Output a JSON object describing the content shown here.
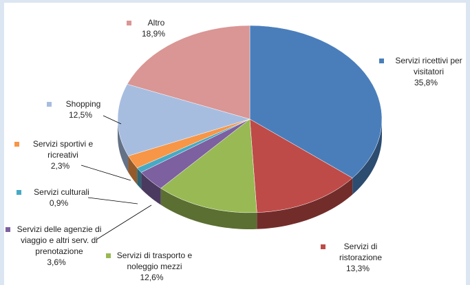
{
  "chart_data": {
    "type": "pie",
    "categories": [
      "Servizi ricettivi per visitatori",
      "Servizi di ristorazione",
      "Servizi di trasporto e noleggio mezzi",
      "Servizi delle agenzie di viaggio e altri serv. di prenotazione",
      "Servizi culturali",
      "Servizi sportivi e ricreativi",
      "Shopping",
      "Altro"
    ],
    "values": [
      35.8,
      13.3,
      12.6,
      3.6,
      0.9,
      2.3,
      12.5,
      18.9
    ],
    "value_labels": [
      "35,8%",
      "13,3%",
      "12,6%",
      "3,6%",
      "0,9%",
      "2,3%",
      "12,5%",
      "18,9%"
    ],
    "colors": [
      "#4a7ebb",
      "#be4b48",
      "#98b954",
      "#7d60a0",
      "#46aac5",
      "#f79646",
      "#a7bde0",
      "#d99694"
    ]
  }
}
